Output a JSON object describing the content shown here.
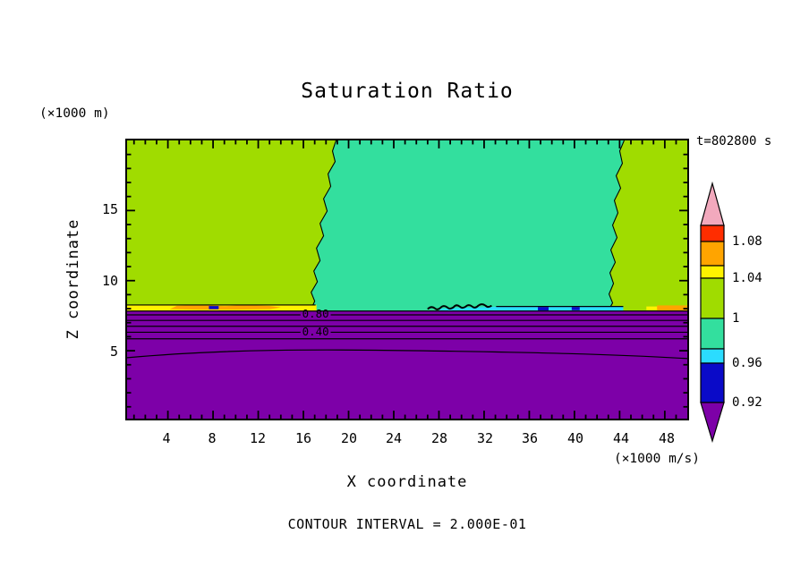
{
  "title": "Saturation Ratio",
  "annotations": {
    "y_unit": "(×1000 m)",
    "x_unit": "(×1000 m/s)",
    "time": "t=802800 s",
    "contour_interval_text": "CONTOUR INTERVAL = 2.000E-01"
  },
  "axes": {
    "x": {
      "label": "X coordinate",
      "ticks": [
        "4",
        "8",
        "12",
        "16",
        "20",
        "24",
        "28",
        "32",
        "36",
        "40",
        "44",
        "48"
      ]
    },
    "z": {
      "label": "Z coordinate",
      "ticks": [
        "5",
        "10",
        "15"
      ]
    }
  },
  "plot": {
    "contour_labels": [
      "0.80",
      "0.40"
    ]
  },
  "colorbar": {
    "labels": [
      "1.08",
      "1.04",
      "1",
      "0.96",
      "0.92"
    ]
  },
  "colors": {
    "purple": "#7D00A8",
    "navy": "#0A0AC8",
    "cyan": "#2BDCFF",
    "spring_green": "#33DF9E",
    "yellow_green": "#A0DC00",
    "yellow": "#FFF200",
    "orange": "#FFA400",
    "red": "#FF2D00",
    "pink": "#F2A9BD"
  },
  "chart_data": {
    "type": "heatmap",
    "subtype": "filled-contour",
    "title": "Saturation Ratio",
    "xlabel": "X coordinate",
    "x_units": "(×1000 m/s)",
    "ylabel": "Z coordinate",
    "y_units": "(×1000 m)",
    "xlim": [
      0,
      50
    ],
    "ylim": [
      0,
      20
    ],
    "x_ticks": [
      4,
      8,
      12,
      16,
      20,
      24,
      28,
      32,
      36,
      40,
      44,
      48
    ],
    "y_ticks": [
      5,
      10,
      15
    ],
    "time_annotation": "t=802800 s",
    "contour_interval": 0.2,
    "colorbar_levels": [
      0.92,
      0.96,
      1,
      1.04,
      1.08
    ],
    "colorbar_colors_bottom_to_top": [
      "purple",
      "navy",
      "cyan",
      "spring-green",
      "yellow-green",
      "yellow",
      "orange",
      "red",
      "pink"
    ],
    "labeled_contours": [
      {
        "value": 0.8,
        "x": 17,
        "z": 7.6
      },
      {
        "value": 0.4,
        "x": 17,
        "z": 6.3
      }
    ],
    "regions": [
      {
        "name": "lower-layer",
        "color": "purple",
        "x_range": [
          0,
          50
        ],
        "z_range": [
          0,
          7.9
        ],
        "note": "saturation ratio < 0.92; horizontal contour lines at 0.2 interval (0.40 and 0.80 labeled)"
      },
      {
        "name": "upper-left",
        "color": "yellow-green",
        "x_range": [
          0,
          17.5
        ],
        "z_range": [
          7.9,
          20
        ],
        "note": "saturation ratio ≈ 1 to 1.04"
      },
      {
        "name": "upper-center",
        "color": "spring-green",
        "x_range": [
          17.5,
          44.5
        ],
        "z_range": [
          7.9,
          20
        ],
        "note": "saturation ratio ≈ 0.96 to 1"
      },
      {
        "name": "upper-right",
        "color": "yellow-green",
        "x_range": [
          44.5,
          50
        ],
        "z_range": [
          7.9,
          20
        ]
      },
      {
        "name": "interface-left-band",
        "colors": [
          "yellow",
          "orange",
          "navy"
        ],
        "x_range": [
          0,
          17
        ],
        "z": 8
      },
      {
        "name": "interface-center-band",
        "colors": [
          "navy",
          "cyan"
        ],
        "x_range": [
          26,
          44
        ],
        "z": 8
      },
      {
        "name": "interface-right-band",
        "colors": [
          "yellow",
          "orange"
        ],
        "x_range": [
          46.5,
          50
        ],
        "z": 8
      }
    ]
  }
}
